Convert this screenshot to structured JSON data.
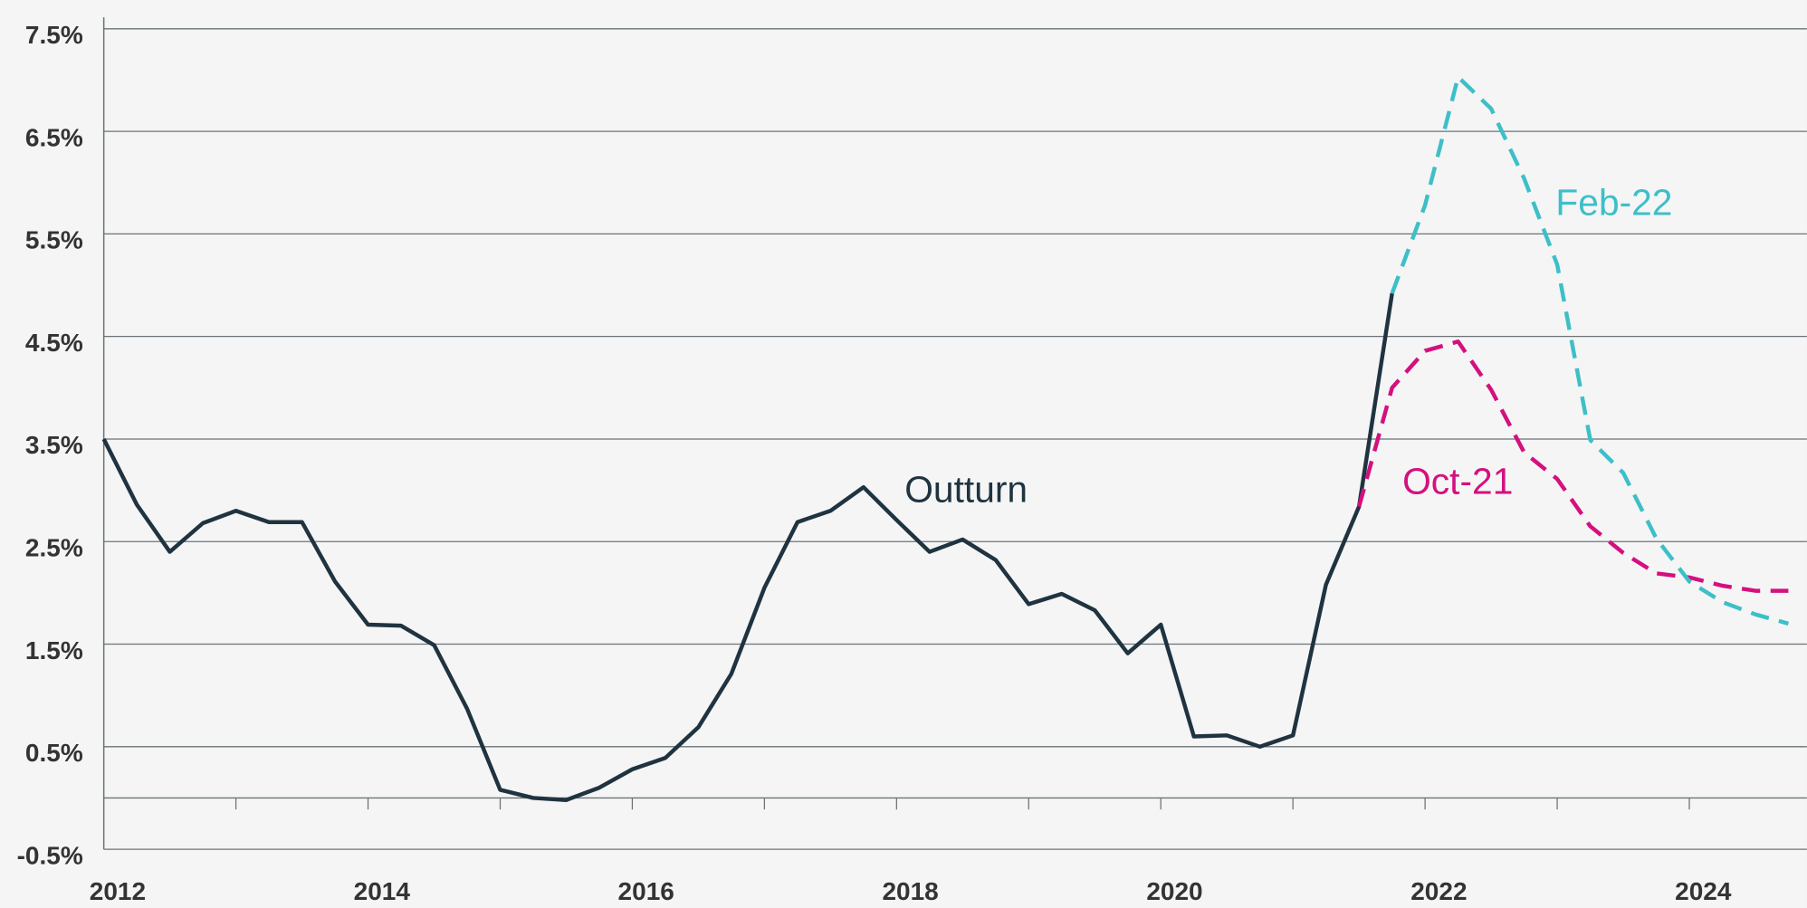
{
  "chart_data": {
    "type": "line",
    "xlim": [
      2012,
      2024.89
    ],
    "xticks": [
      2012,
      2014,
      2016,
      2018,
      2020,
      2022,
      2024
    ],
    "xminor_ticks": [
      2013,
      2015,
      2017,
      2019,
      2021,
      2023
    ],
    "ylim": [
      -0.5,
      7.5
    ],
    "yticks": [
      {
        "value": -0.5,
        "label": "-0.5%"
      },
      {
        "value": 0.5,
        "label": "0.5%"
      },
      {
        "value": 1.5,
        "label": "1.5%"
      },
      {
        "value": 2.5,
        "label": "2.5%"
      },
      {
        "value": 3.5,
        "label": "3.5%"
      },
      {
        "value": 4.5,
        "label": "4.5%"
      },
      {
        "value": 5.5,
        "label": "5.5%"
      },
      {
        "value": 6.5,
        "label": "6.5%"
      },
      {
        "value": 7.5,
        "label": "7.5%"
      }
    ],
    "grid": true,
    "series": [
      {
        "name": "Outturn",
        "color": "#1f3340",
        "dashed": false,
        "x": [
          2012,
          2012.25,
          2012.5,
          2012.75,
          2013,
          2013.25,
          2013.5,
          2013.75,
          2014,
          2014.25,
          2014.5,
          2014.75,
          2015,
          2015.25,
          2015.5,
          2015.75,
          2016,
          2016.25,
          2016.5,
          2016.75,
          2017,
          2017.25,
          2017.5,
          2017.75,
          2018,
          2018.25,
          2018.5,
          2018.75,
          2019,
          2019.25,
          2019.5,
          2019.75,
          2020,
          2020.25,
          2020.5,
          2020.75,
          2021,
          2021.25,
          2021.5,
          2021.75
        ],
        "values": [
          3.5,
          2.86,
          2.4,
          2.68,
          2.8,
          2.69,
          2.69,
          2.11,
          1.69,
          1.68,
          1.49,
          0.87,
          0.08,
          0.0,
          -0.02,
          0.1,
          0.28,
          0.39,
          0.69,
          1.21,
          2.05,
          2.69,
          2.8,
          3.03,
          2.71,
          2.4,
          2.52,
          2.32,
          1.89,
          1.99,
          1.83,
          1.41,
          1.69,
          0.6,
          0.61,
          0.5,
          0.61,
          2.08,
          2.84,
          4.92
        ]
      },
      {
        "name": "Oct-21",
        "color": "#d4107f",
        "dashed": true,
        "x": [
          2021.5,
          2021.75,
          2022,
          2022.25,
          2022.5,
          2022.75,
          2023,
          2023.25,
          2023.5,
          2023.75,
          2024,
          2024.25,
          2024.5,
          2024.75
        ],
        "values": [
          2.84,
          4.0,
          4.36,
          4.45,
          3.98,
          3.37,
          3.11,
          2.65,
          2.39,
          2.19,
          2.15,
          2.07,
          2.02,
          2.02
        ]
      },
      {
        "name": "Feb-22",
        "color": "#3dbfc8",
        "dashed": true,
        "x": [
          2021.75,
          2022,
          2022.25,
          2022.5,
          2022.75,
          2023,
          2023.25,
          2023.5,
          2023.75,
          2024,
          2024.25,
          2024.5,
          2024.75
        ],
        "values": [
          4.92,
          5.78,
          7.03,
          6.72,
          6.04,
          5.2,
          3.49,
          3.17,
          2.53,
          2.11,
          1.91,
          1.79,
          1.7
        ]
      }
    ]
  }
}
